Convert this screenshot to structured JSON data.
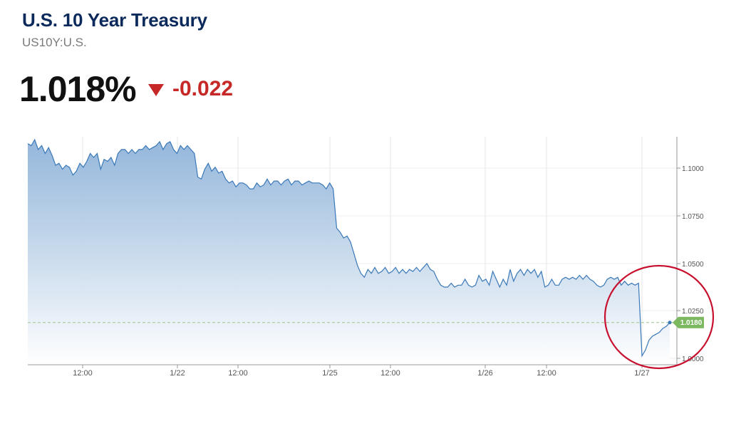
{
  "header": {
    "title": "U.S. 10 Year Treasury",
    "symbol": "US10Y:U.S.",
    "price": "1.018%",
    "change": "-0.022",
    "change_direction": "down",
    "change_color": "#c62828",
    "title_color": "#0b2a5b"
  },
  "chart_data": {
    "type": "area",
    "title": "",
    "xlabel": "",
    "ylabel": "",
    "x_ticks": [
      "12:00",
      "1/22",
      "12:00",
      "1/25",
      "12:00",
      "1/26",
      "12:00",
      "1/27"
    ],
    "y_ticks": [
      "1.1000",
      "1.0750",
      "1.0500",
      "1.0250",
      "1.0000"
    ],
    "ylim": [
      0.9965,
      1.1125
    ],
    "last_value": "1.0180",
    "last_value_color": "#7cb860",
    "line_color": "#3a78b8",
    "fill_top_color": "#8fb3d9",
    "grid": true,
    "annotation": "red circle around final segment",
    "annotation_color": "#c8102e",
    "series": [
      {
        "values": [
          1.109,
          1.108,
          1.111,
          1.106,
          1.108,
          1.104,
          1.107,
          1.103,
          1.098,
          1.099,
          1.096,
          1.098,
          1.097,
          1.093,
          1.095,
          1.099,
          1.097,
          1.1,
          1.104,
          1.102,
          1.104,
          1.096,
          1.101,
          1.1,
          1.102,
          1.098,
          1.104,
          1.106,
          1.106,
          1.104,
          1.106,
          1.104,
          1.106,
          1.106,
          1.108,
          1.106,
          1.107,
          1.108,
          1.11,
          1.106,
          1.109,
          1.11,
          1.106,
          1.104,
          1.108,
          1.106,
          1.108,
          1.106,
          1.104,
          1.092,
          1.091,
          1.096,
          1.099,
          1.095,
          1.097,
          1.094,
          1.095,
          1.091,
          1.089,
          1.09,
          1.087,
          1.089,
          1.089,
          1.088,
          1.086,
          1.086,
          1.089,
          1.087,
          1.088,
          1.091,
          1.088,
          1.09,
          1.09,
          1.088,
          1.09,
          1.091,
          1.088,
          1.09,
          1.09,
          1.088,
          1.089,
          1.09,
          1.089,
          1.089,
          1.089,
          1.088,
          1.086,
          1.089,
          1.086,
          1.066,
          1.064,
          1.061,
          1.062,
          1.059,
          1.053,
          1.047,
          1.043,
          1.041,
          1.045,
          1.043,
          1.046,
          1.043,
          1.044,
          1.046,
          1.043,
          1.044,
          1.046,
          1.043,
          1.045,
          1.043,
          1.045,
          1.044,
          1.046,
          1.044,
          1.046,
          1.048,
          1.045,
          1.044,
          1.04,
          1.037,
          1.036,
          1.036,
          1.038,
          1.036,
          1.037,
          1.037,
          1.04,
          1.037,
          1.036,
          1.037,
          1.042,
          1.039,
          1.04,
          1.037,
          1.044,
          1.04,
          1.036,
          1.04,
          1.037,
          1.045,
          1.039,
          1.043,
          1.045,
          1.042,
          1.045,
          1.043,
          1.045,
          1.041,
          1.044,
          1.036,
          1.037,
          1.04,
          1.037,
          1.037,
          1.04,
          1.041,
          1.04,
          1.041,
          1.04,
          1.042,
          1.04,
          1.042,
          1.04,
          1.039,
          1.037,
          1.036,
          1.037,
          1.04,
          1.041,
          1.04,
          1.041,
          1.037,
          1.039,
          1.037,
          1.038,
          1.037,
          1.038,
          1.001,
          1.004,
          1.009,
          1.011,
          1.012,
          1.013,
          1.015,
          1.016,
          1.018
        ]
      }
    ]
  }
}
